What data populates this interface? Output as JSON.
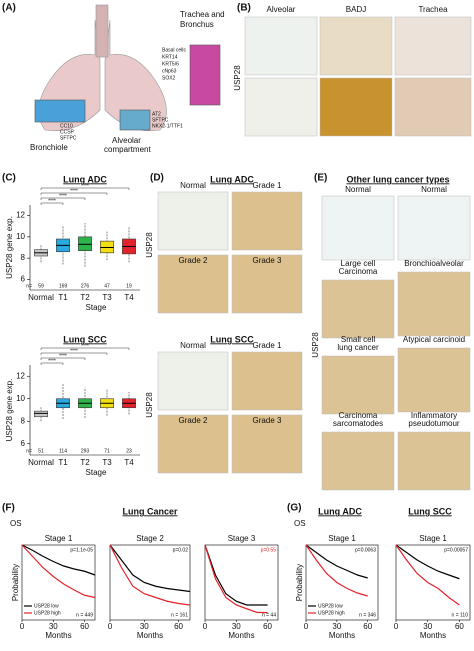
{
  "panelA": {
    "label": "(A)",
    "trachea": [
      "Trachea and",
      "Bronchus"
    ],
    "basal": [
      "Basal cells",
      "KRT14",
      "KRT5/6",
      "cNp63",
      "SOX2"
    ],
    "club": [
      "CC10",
      "CCSP",
      "SFTPC"
    ],
    "bronchiole": "Bronchiole",
    "alveolar": [
      "Alveolar",
      "compartment"
    ],
    "at2": [
      "AT2",
      "SFTPC",
      "NKX2-1/TTF1"
    ]
  },
  "panelB": {
    "label": "(B)",
    "columns": [
      "Alveolar",
      "BADJ",
      "Trachea"
    ],
    "row_label": "USP28"
  },
  "panelC": {
    "label": "(C)"
  },
  "panelD": {
    "label": "(D)",
    "adc_title": "Lung ADC",
    "scc_title": "Lung SCC",
    "row_label": "USP28",
    "images": [
      "Normal",
      "Grade 1",
      "Grade 2",
      "Grade 3"
    ]
  },
  "panelE": {
    "label": "(E)",
    "title": "Other  lung cancer types",
    "row_label": "USP28",
    "images": [
      [
        "Normal"
      ],
      [
        "Normal"
      ],
      [
        "Large cell",
        "Carcinoma"
      ],
      [
        "Bronchioalveolar"
      ],
      [
        "Small cell",
        "lung cancer"
      ],
      [
        "Atypical carcinoid"
      ],
      [
        "Carcinoma",
        "sarcomatodes"
      ],
      [
        "Inflammatory",
        "pseudotumour"
      ]
    ]
  },
  "panelF": {
    "label": "(F)",
    "title": "Lung Cancer",
    "os": "OS"
  },
  "panelG": {
    "label": "(G)",
    "adc_title": "Lung ADC",
    "scc_title": "Lung SCC",
    "os": "OS"
  },
  "chart_data": [
    {
      "type": "box",
      "title": "Lung ADC",
      "ylabel": "USP28 gene exp.",
      "xlabel": "Stage",
      "categories": [
        "Normal",
        "T1",
        "T2",
        "T3",
        "T4"
      ],
      "n_prefix": "n=",
      "n": [
        59,
        169,
        276,
        47,
        19
      ],
      "colors": [
        "#c8c8c8",
        "#2aa8e0",
        "#2db34a",
        "#f2df12",
        "#e3232b"
      ],
      "median": [
        8.5,
        9.2,
        9.3,
        9.0,
        9.1
      ],
      "q1": [
        8.2,
        8.6,
        8.7,
        8.5,
        8.4
      ],
      "q3": [
        8.8,
        9.8,
        10.0,
        9.6,
        9.8
      ],
      "whisker_low": [
        7.6,
        7.4,
        7.2,
        7.8,
        7.6
      ],
      "whisker_high": [
        9.3,
        11.0,
        11.3,
        10.5,
        11.0
      ],
      "significance": [
        "****",
        "****",
        "****",
        "****"
      ],
      "ylim": [
        5,
        13
      ],
      "yticks": [
        6,
        8,
        10,
        12
      ]
    },
    {
      "type": "box",
      "title": "Lung SCC",
      "ylabel": "USP28 gene exp.",
      "xlabel": "Stage",
      "categories": [
        "Normal",
        "T1",
        "T2",
        "T3",
        "T4"
      ],
      "n_prefix": "n=",
      "n": [
        51,
        114,
        293,
        71,
        23
      ],
      "colors": [
        "#c8c8c8",
        "#2aa8e0",
        "#2db34a",
        "#f2df12",
        "#e3232b"
      ],
      "median": [
        8.7,
        9.6,
        9.6,
        9.6,
        9.6
      ],
      "q1": [
        8.4,
        9.2,
        9.2,
        9.2,
        9.2
      ],
      "q3": [
        8.9,
        10.0,
        10.0,
        10.0,
        10.0
      ],
      "whisker_low": [
        8.0,
        8.2,
        8.3,
        8.5,
        8.6
      ],
      "whisker_high": [
        9.3,
        11.3,
        11.0,
        10.8,
        10.6
      ],
      "significance": [
        "****",
        "****",
        "****",
        "****"
      ],
      "ylim": [
        5,
        13
      ],
      "yticks": [
        6,
        8,
        10,
        12
      ]
    },
    {
      "type": "km",
      "title": "Stage 1",
      "ylabel": "Probability",
      "xlabel": "Months",
      "annotation": "p=1.1e-05",
      "n_label": "n = 449",
      "xlim": [
        0,
        70
      ],
      "xticks": [
        0,
        30,
        60
      ],
      "ylim": [
        0,
        1
      ],
      "legend": true,
      "series": [
        {
          "name": "USP28 low",
          "color": "#000000",
          "x": [
            0,
            10,
            20,
            30,
            40,
            50,
            60,
            70
          ],
          "values": [
            1,
            0.93,
            0.85,
            0.78,
            0.72,
            0.68,
            0.65,
            0.6
          ]
        },
        {
          "name": "USP28 high",
          "color": "#e3232b",
          "x": [
            0,
            10,
            20,
            30,
            40,
            50,
            60,
            70
          ],
          "values": [
            1,
            0.85,
            0.7,
            0.58,
            0.48,
            0.4,
            0.33,
            0.3
          ]
        }
      ]
    },
    {
      "type": "km",
      "title": "Stage 2",
      "xlabel": "Months",
      "annotation": "p=0.02",
      "n_label": "n = 161",
      "xlim": [
        0,
        70
      ],
      "xticks": [
        0,
        30,
        60
      ],
      "ylim": [
        0,
        1
      ],
      "series": [
        {
          "color": "#000000",
          "x": [
            0,
            10,
            20,
            30,
            40,
            50,
            60,
            70
          ],
          "values": [
            1,
            0.8,
            0.6,
            0.5,
            0.45,
            0.42,
            0.4,
            0.38
          ]
        },
        {
          "color": "#e3232b",
          "x": [
            0,
            10,
            20,
            30,
            40,
            50,
            60,
            70
          ],
          "values": [
            1,
            0.7,
            0.45,
            0.35,
            0.3,
            0.25,
            0.22,
            0.2
          ]
        }
      ]
    },
    {
      "type": "km",
      "title": "Stage 3",
      "xlabel": "Months",
      "annotation": "p=0.55",
      "annotation_color": "#e3232b",
      "n_label": "n = 44",
      "xlim": [
        0,
        70
      ],
      "xticks": [
        0,
        30,
        60
      ],
      "ylim": [
        0,
        1
      ],
      "series": [
        {
          "color": "#000000",
          "x": [
            0,
            10,
            20,
            30,
            40,
            50,
            60
          ],
          "values": [
            1,
            0.6,
            0.35,
            0.25,
            0.2,
            0.2,
            0.2
          ]
        },
        {
          "color": "#e3232b",
          "x": [
            0,
            10,
            20,
            30,
            40,
            50,
            60
          ],
          "values": [
            1,
            0.55,
            0.3,
            0.2,
            0.15,
            0.1,
            0.1
          ]
        }
      ]
    },
    {
      "type": "km",
      "title": "Stage 1",
      "ylabel": "Probability",
      "xlabel": "Months",
      "annotation": "p=0.0063",
      "n_label": "n = 346",
      "xlim": [
        0,
        70
      ],
      "xticks": [
        0,
        30,
        60
      ],
      "ylim": [
        0,
        1
      ],
      "legend": true,
      "series": [
        {
          "name": "USP28 low",
          "color": "#000000",
          "x": [
            0,
            10,
            20,
            30,
            40,
            50,
            60
          ],
          "values": [
            1,
            0.9,
            0.8,
            0.72,
            0.66,
            0.6,
            0.56
          ]
        },
        {
          "name": "USP28 high",
          "color": "#e3232b",
          "x": [
            0,
            10,
            20,
            30,
            40,
            50,
            60
          ],
          "values": [
            1,
            0.8,
            0.62,
            0.5,
            0.42,
            0.36,
            0.32
          ]
        }
      ]
    },
    {
      "type": "km",
      "title": "Stage 1",
      "xlabel": "Months",
      "annotation": "p=0.00057",
      "n_label": "n = 110",
      "xlim": [
        0,
        70
      ],
      "xticks": [
        0,
        30,
        60
      ],
      "ylim": [
        0,
        1
      ],
      "series": [
        {
          "color": "#000000",
          "x": [
            0,
            10,
            20,
            30,
            40,
            50,
            60
          ],
          "values": [
            1,
            0.9,
            0.8,
            0.72,
            0.65,
            0.6,
            0.55
          ]
        },
        {
          "color": "#e3232b",
          "x": [
            0,
            10,
            20,
            30,
            40,
            50,
            60
          ],
          "values": [
            1,
            0.8,
            0.62,
            0.5,
            0.42,
            0.3,
            0.2
          ]
        }
      ]
    }
  ]
}
